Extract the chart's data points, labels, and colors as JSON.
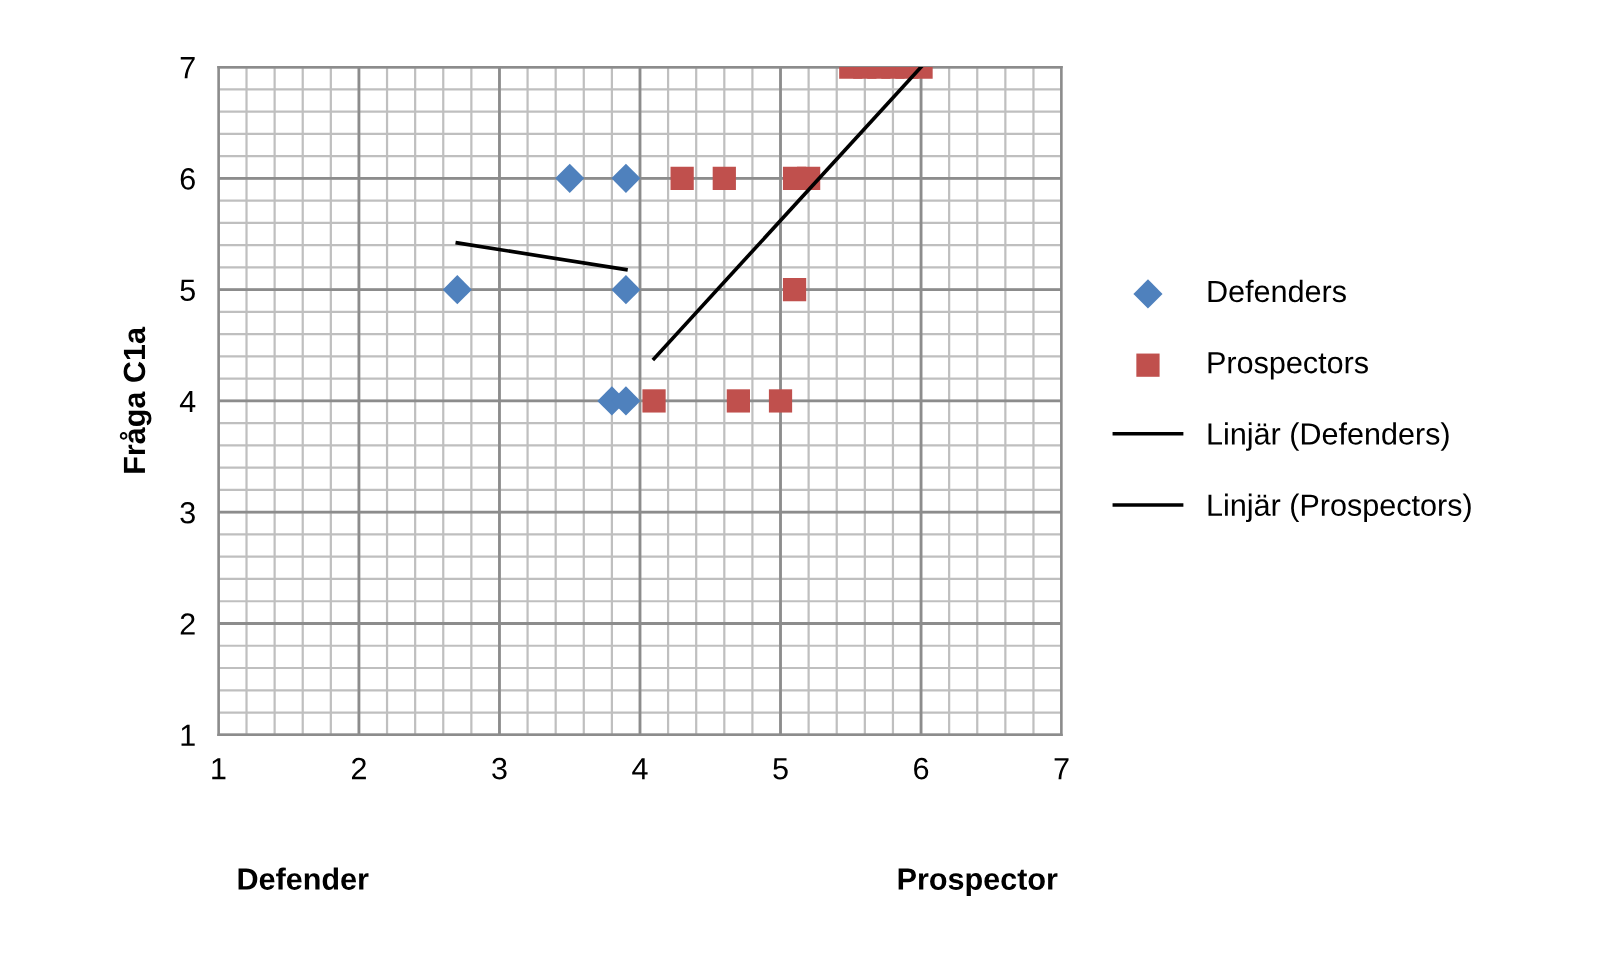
{
  "chart_data": {
    "type": "scatter",
    "ylabel": "Fråga C1a",
    "annotations": [
      "Defender",
      "Prospector"
    ],
    "xlim": [
      1,
      7
    ],
    "xticks": [
      1,
      2,
      3,
      4,
      5,
      6,
      7
    ],
    "ylim": [
      1,
      7
    ],
    "yticks": [
      1,
      2,
      3,
      4,
      5,
      6,
      7
    ],
    "grid": true,
    "legend": "right",
    "series": [
      {
        "name": "Defenders",
        "color": "#4f81bd",
        "marker": "diamond",
        "x": [
          3.5,
          3.9,
          2.7,
          3.9,
          3.8,
          3.9
        ],
        "values": [
          6,
          6,
          5,
          5,
          4,
          4
        ]
      },
      {
        "name": "Prospectors",
        "color": "#c0504d",
        "marker": "square",
        "x": [
          4.3,
          4.6,
          5.1,
          5.2,
          5.5,
          5.6,
          5.7,
          5.8,
          5.9,
          6.0,
          5.1,
          4.1,
          4.7,
          5.0
        ],
        "values": [
          6,
          6,
          6,
          6,
          7,
          7,
          7,
          7,
          7,
          7,
          5,
          4,
          4,
          4
        ]
      },
      {
        "name": "Linjär (Defenders)",
        "type": "line",
        "color": "#000000",
        "marker": "none",
        "x": [
          2.7,
          3.9
        ],
        "values": [
          5.42,
          5.18
        ]
      },
      {
        "name": "Linjär (Prospectors)",
        "type": "line",
        "color": "#000000",
        "marker": "none",
        "x": [
          4.1,
          6.0
        ],
        "values": [
          4.38,
          7.0
        ]
      }
    ]
  }
}
